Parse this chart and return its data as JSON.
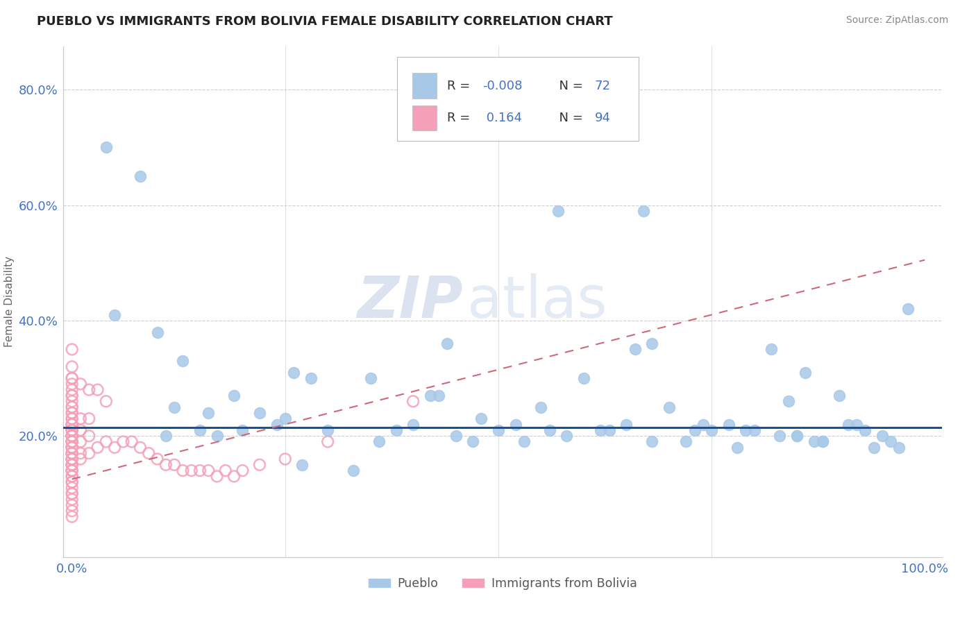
{
  "title": "PUEBLO VS IMMIGRANTS FROM BOLIVIA FEMALE DISABILITY CORRELATION CHART",
  "source": "Source: ZipAtlas.com",
  "ylabel": "Female Disability",
  "xlim": [
    -0.01,
    1.02
  ],
  "ylim": [
    -0.01,
    0.875
  ],
  "pueblo_R": "-0.008",
  "pueblo_N": "72",
  "bolivia_R": "0.164",
  "bolivia_N": "94",
  "pueblo_color": "#a8c8e8",
  "bolivia_color": "#f4a0b8",
  "pueblo_line_color": "#1a5296",
  "bolivia_line_color": "#d06878",
  "watermark_color": "#ccd8ea",
  "background_color": "#ffffff",
  "grid_color": "#c8c8c8",
  "tick_color": "#4472c4",
  "legend_R_color": "#4472c4",
  "pueblo_line_y": 0.215,
  "bolivia_line_x0": 0.0,
  "bolivia_line_y0": 0.125,
  "bolivia_line_x1": 1.0,
  "bolivia_line_y1": 0.505,
  "pueblo_x": [
    0.04,
    0.08,
    0.1,
    0.12,
    0.13,
    0.15,
    0.16,
    0.17,
    0.19,
    0.2,
    0.22,
    0.24,
    0.25,
    0.27,
    0.28,
    0.3,
    0.33,
    0.35,
    0.36,
    0.38,
    0.4,
    0.42,
    0.44,
    0.45,
    0.47,
    0.48,
    0.5,
    0.52,
    0.53,
    0.55,
    0.56,
    0.57,
    0.58,
    0.6,
    0.62,
    0.63,
    0.65,
    0.67,
    0.68,
    0.7,
    0.72,
    0.73,
    0.75,
    0.77,
    0.78,
    0.8,
    0.82,
    0.83,
    0.85,
    0.87,
    0.88,
    0.9,
    0.92,
    0.93,
    0.95,
    0.97,
    0.98,
    0.05,
    0.11,
    0.26,
    0.43,
    0.66,
    0.85,
    0.91,
    0.74,
    0.79,
    0.84,
    0.88,
    0.94,
    0.96,
    0.68,
    0.86
  ],
  "pueblo_y": [
    0.7,
    0.65,
    0.38,
    0.25,
    0.33,
    0.21,
    0.24,
    0.2,
    0.27,
    0.21,
    0.24,
    0.22,
    0.23,
    0.15,
    0.3,
    0.21,
    0.14,
    0.3,
    0.19,
    0.21,
    0.22,
    0.27,
    0.36,
    0.2,
    0.19,
    0.23,
    0.21,
    0.22,
    0.19,
    0.25,
    0.21,
    0.59,
    0.2,
    0.3,
    0.21,
    0.21,
    0.22,
    0.59,
    0.19,
    0.25,
    0.19,
    0.21,
    0.21,
    0.22,
    0.18,
    0.21,
    0.35,
    0.2,
    0.2,
    0.19,
    0.19,
    0.27,
    0.22,
    0.21,
    0.2,
    0.18,
    0.42,
    0.41,
    0.2,
    0.31,
    0.27,
    0.35,
    0.2,
    0.22,
    0.22,
    0.21,
    0.26,
    0.19,
    0.18,
    0.19,
    0.36,
    0.31
  ],
  "bolivia_x": [
    0.0,
    0.0,
    0.0,
    0.0,
    0.0,
    0.0,
    0.0,
    0.0,
    0.0,
    0.0,
    0.0,
    0.0,
    0.0,
    0.0,
    0.0,
    0.0,
    0.0,
    0.0,
    0.0,
    0.0,
    0.0,
    0.0,
    0.0,
    0.0,
    0.0,
    0.0,
    0.0,
    0.0,
    0.0,
    0.0,
    0.0,
    0.0,
    0.0,
    0.0,
    0.0,
    0.0,
    0.0,
    0.0,
    0.0,
    0.0,
    0.0,
    0.0,
    0.0,
    0.0,
    0.0,
    0.0,
    0.0,
    0.0,
    0.0,
    0.0,
    0.0,
    0.0,
    0.0,
    0.0,
    0.0,
    0.0,
    0.0,
    0.0,
    0.0,
    0.0,
    0.01,
    0.01,
    0.01,
    0.01,
    0.01,
    0.01,
    0.02,
    0.02,
    0.02,
    0.02,
    0.03,
    0.03,
    0.04,
    0.04,
    0.05,
    0.06,
    0.07,
    0.08,
    0.09,
    0.1,
    0.11,
    0.12,
    0.13,
    0.14,
    0.15,
    0.16,
    0.17,
    0.18,
    0.19,
    0.2,
    0.22,
    0.25,
    0.3,
    0.4
  ],
  "bolivia_y": [
    0.06,
    0.07,
    0.08,
    0.09,
    0.1,
    0.1,
    0.11,
    0.12,
    0.12,
    0.13,
    0.13,
    0.14,
    0.14,
    0.14,
    0.15,
    0.15,
    0.15,
    0.16,
    0.16,
    0.16,
    0.17,
    0.17,
    0.17,
    0.17,
    0.18,
    0.18,
    0.18,
    0.18,
    0.19,
    0.19,
    0.19,
    0.19,
    0.2,
    0.2,
    0.2,
    0.2,
    0.2,
    0.21,
    0.21,
    0.21,
    0.21,
    0.22,
    0.22,
    0.22,
    0.22,
    0.23,
    0.23,
    0.24,
    0.24,
    0.25,
    0.25,
    0.26,
    0.27,
    0.27,
    0.28,
    0.29,
    0.3,
    0.3,
    0.35,
    0.32,
    0.16,
    0.17,
    0.19,
    0.21,
    0.23,
    0.29,
    0.17,
    0.2,
    0.23,
    0.28,
    0.18,
    0.28,
    0.19,
    0.26,
    0.18,
    0.19,
    0.19,
    0.18,
    0.17,
    0.16,
    0.15,
    0.15,
    0.14,
    0.14,
    0.14,
    0.14,
    0.13,
    0.14,
    0.13,
    0.14,
    0.15,
    0.16,
    0.19,
    0.26
  ]
}
